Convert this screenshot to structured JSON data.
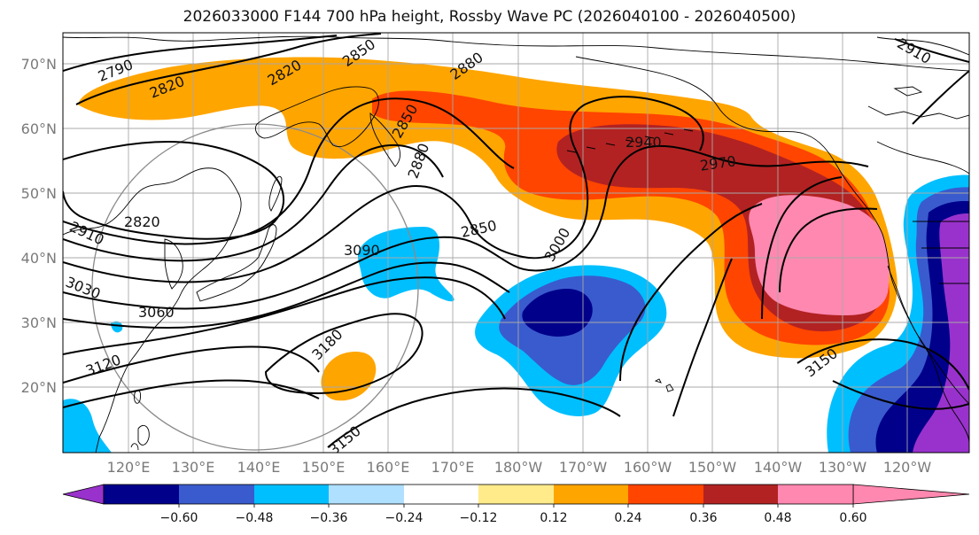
{
  "title": "2026033000 F144 700 hPa height, Rossby Wave PC (2026040100 - 2026040500)",
  "lat_labels": [
    "70°N",
    "60°N",
    "50°N",
    "40°N",
    "30°N",
    "20°N"
  ],
  "lon_labels": [
    "120°E",
    "130°E",
    "140°E",
    "150°E",
    "160°E",
    "170°E",
    "180°W",
    "170°W",
    "160°W",
    "150°W",
    "140°W",
    "130°W",
    "120°W"
  ],
  "colorbar": {
    "colors": [
      "#9932cc",
      "#00008b",
      "#3a5bcd",
      "#00bfff",
      "#b0e0ff",
      "#ffffff",
      "#ffeb8a",
      "#ffa500",
      "#ff4500",
      "#b22222",
      "#ff88b0"
    ],
    "ticks": [
      "−0.60",
      "−0.48",
      "−0.36",
      "−0.24",
      "−0.12",
      "0.12",
      "0.24",
      "0.36",
      "0.48",
      "0.60"
    ]
  },
  "contour_labels": [
    "2790",
    "2820",
    "2850",
    "2880",
    "2910",
    "2940",
    "2970",
    "3000",
    "2820",
    "2850",
    "2880",
    "2910",
    "3030",
    "3060",
    "3090",
    "3120",
    "3180",
    "3150",
    "3150",
    "2820",
    "2850"
  ]
}
